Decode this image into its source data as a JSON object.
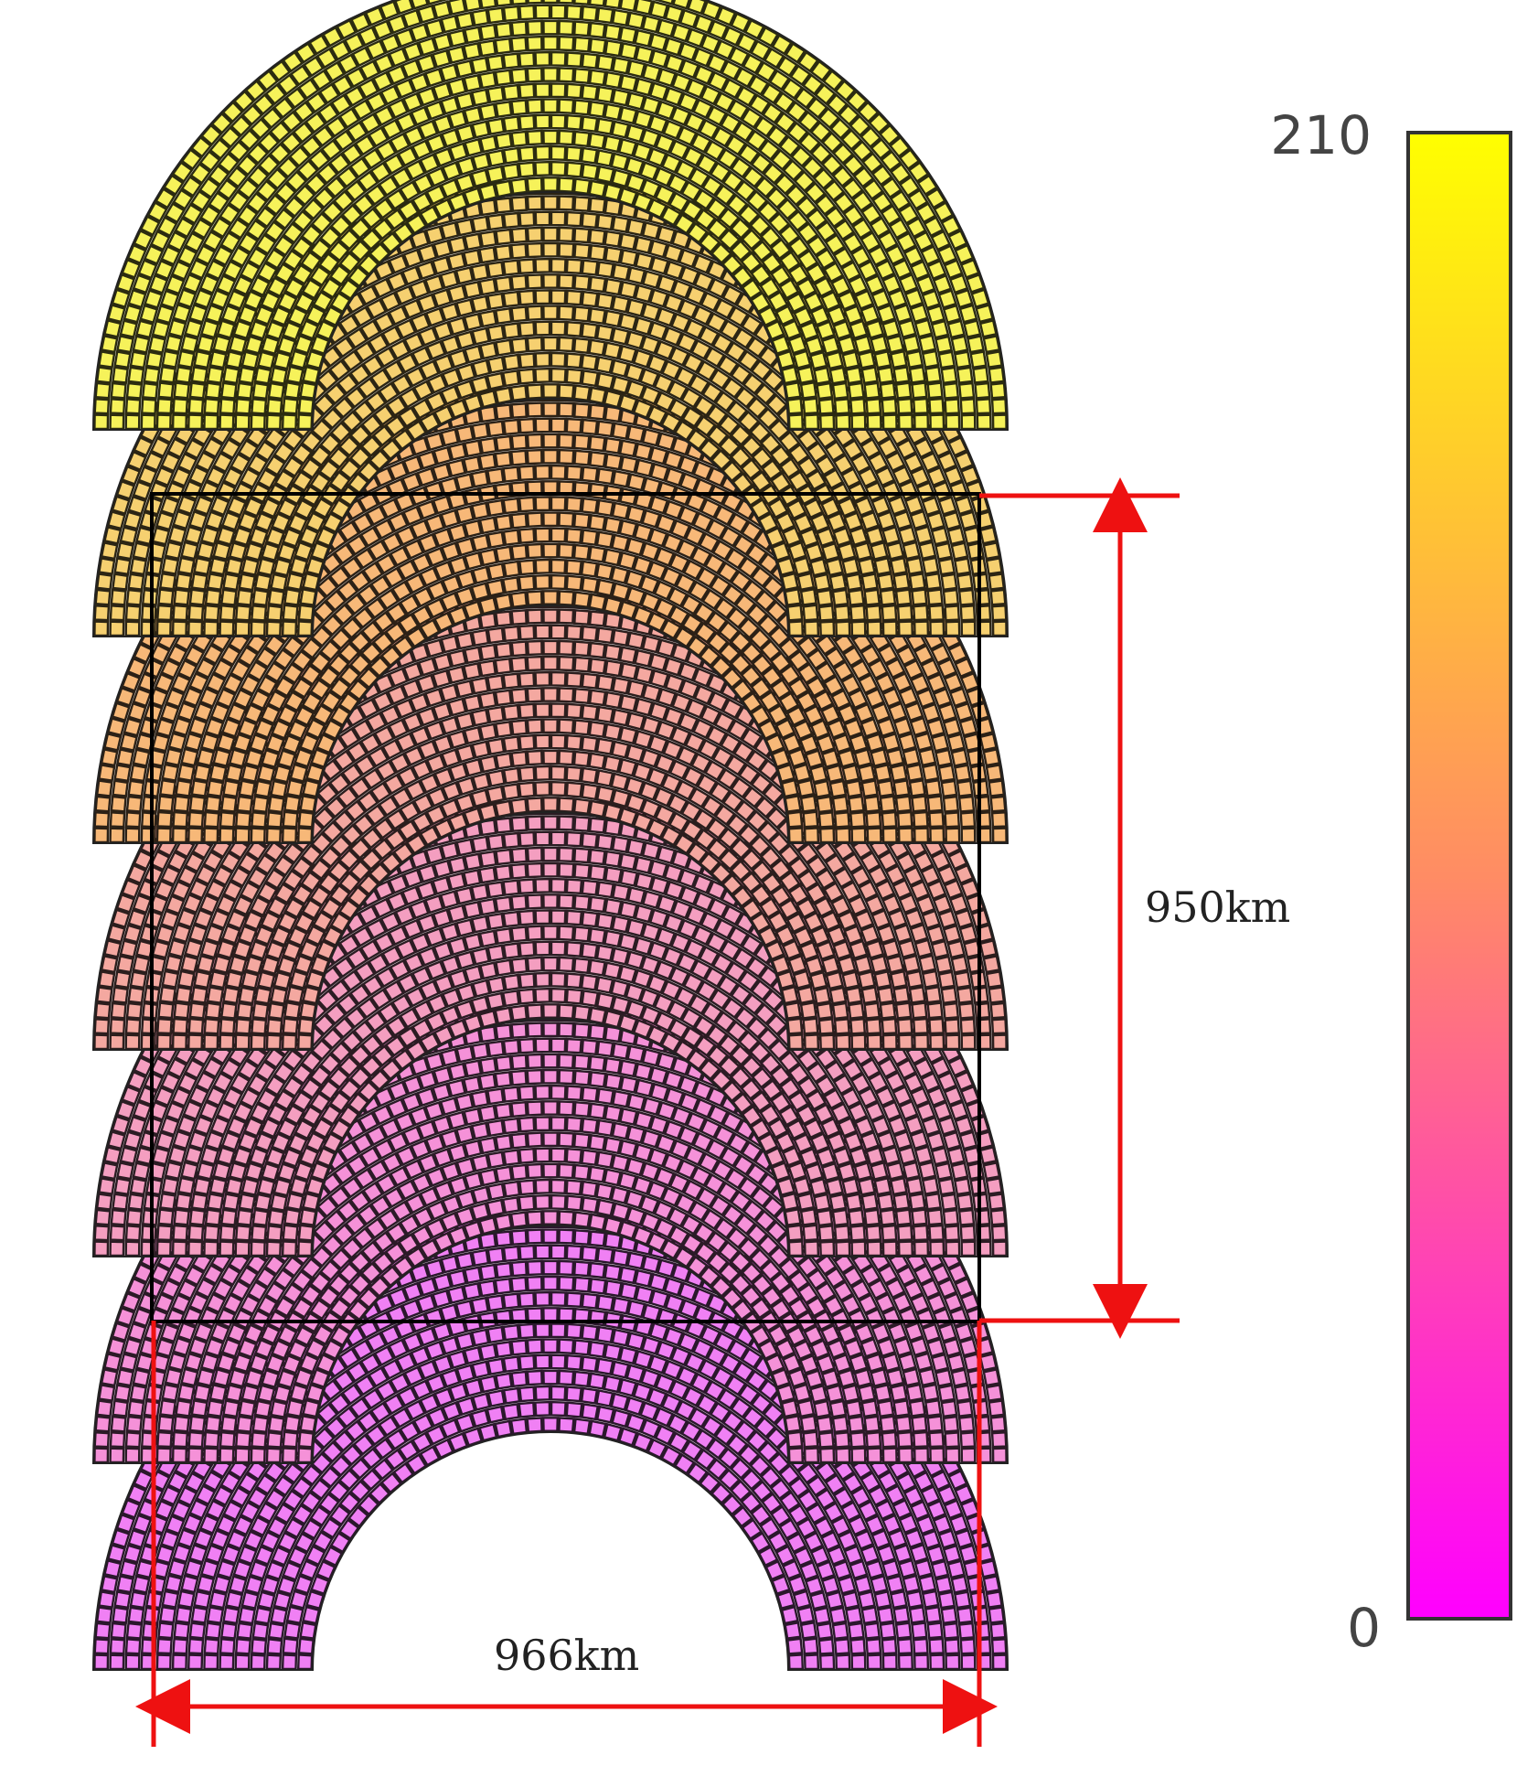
{
  "colorbar": {
    "max_label": "210",
    "min_label": "0",
    "top_color": "#ffff00",
    "mid_color": "#ff8c64",
    "bottom_color": "#ff00ff"
  },
  "dimensions": {
    "height_label": "950km",
    "width_label": "966km"
  },
  "swaths": {
    "count": 7,
    "colors": [
      "#f6f25a",
      "#f6d070",
      "#f7b878",
      "#f4a8a0",
      "#f49ec0",
      "#f591d8",
      "#f080f4"
    ]
  },
  "annotation_color": "#ee1111"
}
